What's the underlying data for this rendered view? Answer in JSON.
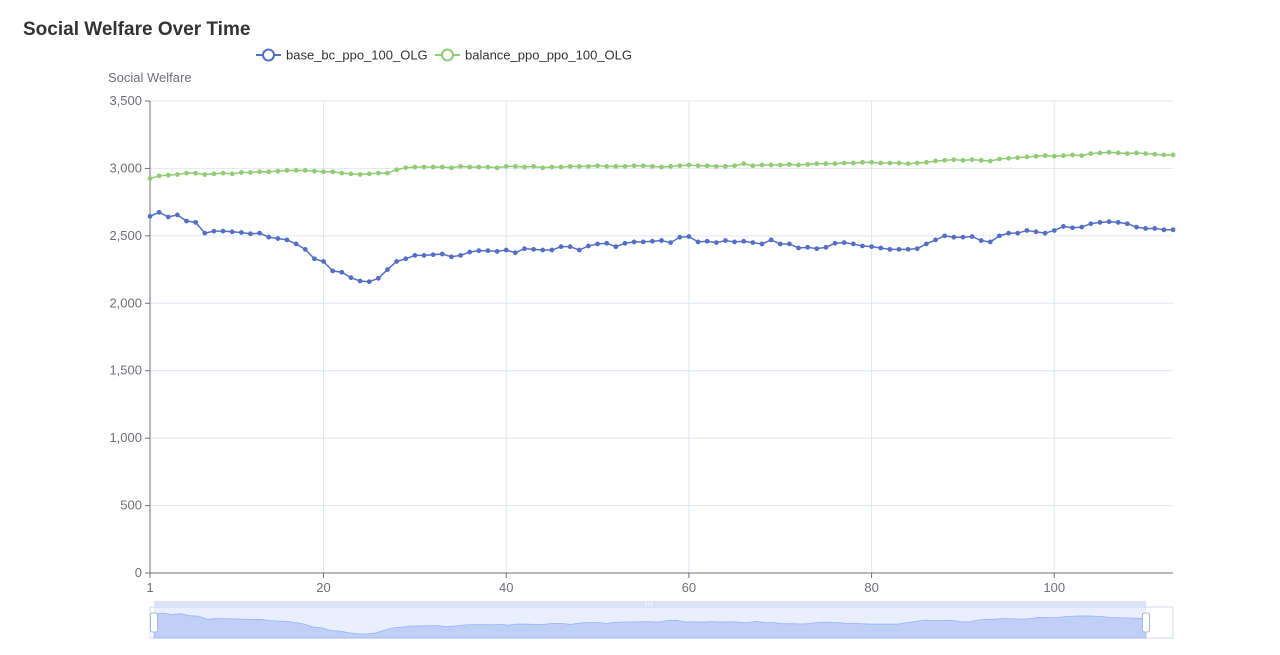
{
  "chart_data": {
    "type": "line",
    "title": "Social Welfare Over Time",
    "ylabel": "Social Welfare",
    "xlabel": "",
    "xlim": [
      1,
      113
    ],
    "ylim": [
      0,
      3500
    ],
    "x_ticks": [
      1,
      20,
      40,
      60,
      80,
      100
    ],
    "x_tick_labels": [
      "1",
      "20",
      "40",
      "60",
      "80",
      "100"
    ],
    "y_ticks": [
      0,
      500,
      1000,
      1500,
      2000,
      2500,
      3000,
      3500
    ],
    "y_tick_labels": [
      "0",
      "500",
      "1,000",
      "1,500",
      "2,000",
      "2,500",
      "3,000",
      "3,500"
    ],
    "grid": true,
    "legend_position": "top",
    "data_zoom": {
      "start_percent": 0,
      "end_percent": 100
    },
    "series": [
      {
        "name": "base_bc_ppo_100_OLG",
        "color": "#5470c6",
        "values": [
          2645,
          2675,
          2640,
          2655,
          2610,
          2600,
          2520,
          2535,
          2535,
          2530,
          2525,
          2515,
          2520,
          2490,
          2480,
          2470,
          2440,
          2400,
          2330,
          2310,
          2240,
          2230,
          2190,
          2165,
          2160,
          2185,
          2250,
          2310,
          2330,
          2355,
          2355,
          2360,
          2365,
          2345,
          2355,
          2380,
          2390,
          2390,
          2385,
          2395,
          2375,
          2405,
          2400,
          2395,
          2395,
          2420,
          2420,
          2395,
          2425,
          2440,
          2445,
          2420,
          2445,
          2455,
          2455,
          2460,
          2465,
          2450,
          2490,
          2495,
          2455,
          2460,
          2450,
          2465,
          2455,
          2460,
          2450,
          2440,
          2470,
          2440,
          2440,
          2410,
          2415,
          2405,
          2415,
          2445,
          2450,
          2440,
          2425,
          2420,
          2410,
          2400,
          2400,
          2400,
          2405,
          2440,
          2470,
          2500,
          2490,
          2490,
          2495,
          2465,
          2455,
          2500,
          2520,
          2520,
          2540,
          2530,
          2520,
          2540,
          2570,
          2560,
          2565,
          2590,
          2600,
          2605,
          2600,
          2590,
          2565,
          2555,
          2555,
          2545,
          2545
        ]
      },
      {
        "name": "balance_ppo_ppo_100_OLG",
        "color": "#91cc75",
        "values": [
          2925,
          2945,
          2950,
          2955,
          2965,
          2965,
          2955,
          2960,
          2965,
          2960,
          2970,
          2970,
          2975,
          2975,
          2980,
          2985,
          2985,
          2985,
          2980,
          2975,
          2975,
          2965,
          2960,
          2955,
          2960,
          2965,
          2965,
          2990,
          3005,
          3010,
          3010,
          3010,
          3010,
          3005,
          3015,
          3010,
          3010,
          3010,
          3005,
          3015,
          3015,
          3010,
          3015,
          3005,
          3010,
          3010,
          3015,
          3015,
          3015,
          3020,
          3015,
          3015,
          3015,
          3020,
          3020,
          3015,
          3010,
          3015,
          3020,
          3025,
          3020,
          3020,
          3015,
          3015,
          3020,
          3035,
          3020,
          3025,
          3025,
          3025,
          3030,
          3025,
          3030,
          3035,
          3035,
          3035,
          3040,
          3040,
          3045,
          3045,
          3040,
          3040,
          3040,
          3035,
          3040,
          3045,
          3055,
          3060,
          3065,
          3060,
          3065,
          3060,
          3055,
          3070,
          3075,
          3080,
          3085,
          3090,
          3095,
          3090,
          3095,
          3100,
          3095,
          3110,
          3115,
          3120,
          3115,
          3110,
          3115,
          3110,
          3105,
          3100,
          3100
        ]
      }
    ]
  }
}
